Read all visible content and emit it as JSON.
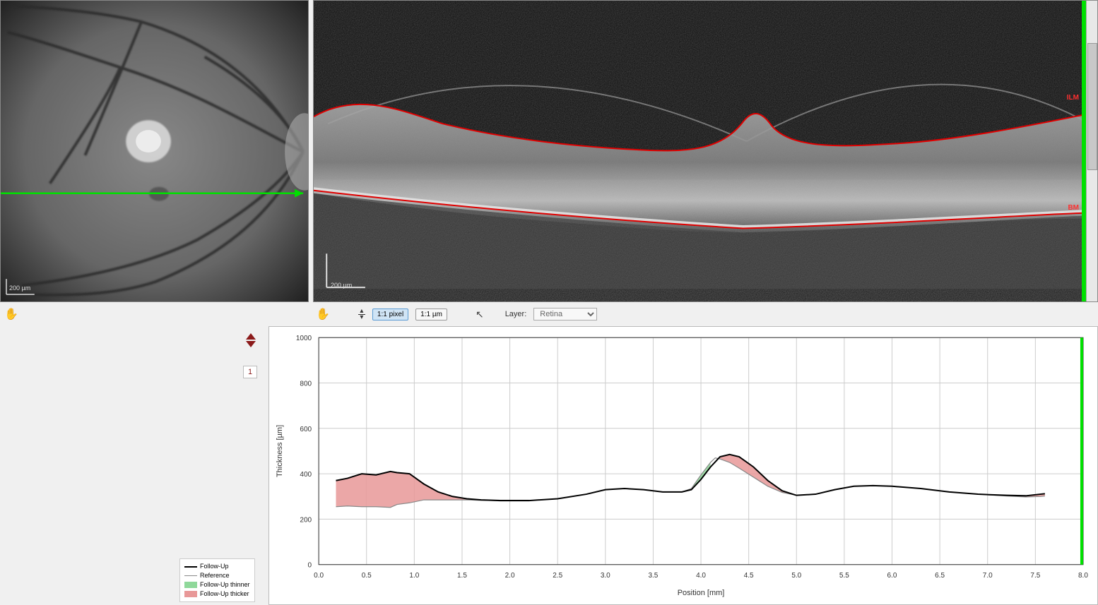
{
  "fundus": {
    "scale_label": "200 µm",
    "scan_line_y_ratio": 0.64,
    "background": "#000000",
    "scan_line_color": "#00e000"
  },
  "oct": {
    "scale_label": "200 µm",
    "ilm_label": "ILM",
    "bm_label": "BM",
    "contour_color": "#e00000",
    "label_color": "#ff2020",
    "background": "#000000",
    "green_indicator_color": "#00e000"
  },
  "toolbar": {
    "btn_pixel": "1:1 pixel",
    "btn_um": "1:1 µm",
    "layer_label": "Layer:",
    "layer_value": "Retina"
  },
  "nav": {
    "page": "1"
  },
  "legend": {
    "followup": "Follow-Up",
    "reference": "Reference",
    "thinner": "Follow-Up thinner",
    "thicker": "Follow-Up thicker"
  },
  "chart": {
    "type": "line-area-diff",
    "ylabel": "Thickness [µm]",
    "xlabel": "Position [mm]",
    "label_fontsize": 11,
    "tick_fontsize": 10,
    "xlim": [
      0.0,
      8.0
    ],
    "ylim": [
      0,
      1000
    ],
    "xtick_step": 0.5,
    "ytick_step": 200,
    "grid_color": "#cccccc",
    "background_color": "#ffffff",
    "followup_color": "#000000",
    "reference_color": "#888888",
    "thinner_fill": "#8fd89a",
    "thicker_fill": "#e89898",
    "green_marker_x": 8.0,
    "green_marker_color": "#00e000",
    "followup_points": [
      [
        0.18,
        370
      ],
      [
        0.3,
        380
      ],
      [
        0.45,
        400
      ],
      [
        0.6,
        395
      ],
      [
        0.75,
        410
      ],
      [
        0.82,
        405
      ],
      [
        0.95,
        400
      ],
      [
        1.1,
        355
      ],
      [
        1.25,
        320
      ],
      [
        1.4,
        300
      ],
      [
        1.55,
        290
      ],
      [
        1.7,
        285
      ],
      [
        1.9,
        282
      ],
      [
        2.2,
        282
      ],
      [
        2.5,
        290
      ],
      [
        2.8,
        310
      ],
      [
        3.0,
        330
      ],
      [
        3.2,
        335
      ],
      [
        3.4,
        330
      ],
      [
        3.6,
        320
      ],
      [
        3.8,
        320
      ],
      [
        3.9,
        330
      ],
      [
        4.0,
        375
      ],
      [
        4.1,
        430
      ],
      [
        4.2,
        475
      ],
      [
        4.3,
        485
      ],
      [
        4.4,
        475
      ],
      [
        4.55,
        430
      ],
      [
        4.7,
        370
      ],
      [
        4.85,
        325
      ],
      [
        5.0,
        305
      ],
      [
        5.2,
        310
      ],
      [
        5.4,
        330
      ],
      [
        5.6,
        345
      ],
      [
        5.8,
        348
      ],
      [
        6.0,
        345
      ],
      [
        6.3,
        335
      ],
      [
        6.6,
        320
      ],
      [
        6.9,
        310
      ],
      [
        7.2,
        305
      ],
      [
        7.4,
        303
      ],
      [
        7.55,
        310
      ],
      [
        7.6,
        312
      ]
    ],
    "reference_points": [
      [
        0.18,
        255
      ],
      [
        0.3,
        258
      ],
      [
        0.45,
        255
      ],
      [
        0.6,
        255
      ],
      [
        0.75,
        252
      ],
      [
        0.82,
        265
      ],
      [
        0.95,
        272
      ],
      [
        1.1,
        285
      ],
      [
        1.25,
        285
      ],
      [
        1.4,
        285
      ],
      [
        1.55,
        285
      ],
      [
        1.7,
        283
      ],
      [
        1.9,
        282
      ],
      [
        2.2,
        282
      ],
      [
        2.5,
        290
      ],
      [
        2.8,
        310
      ],
      [
        3.0,
        330
      ],
      [
        3.2,
        335
      ],
      [
        3.4,
        330
      ],
      [
        3.6,
        320
      ],
      [
        3.8,
        320
      ],
      [
        3.9,
        335
      ],
      [
        4.0,
        395
      ],
      [
        4.1,
        450
      ],
      [
        4.15,
        470
      ],
      [
        4.2,
        465
      ],
      [
        4.3,
        450
      ],
      [
        4.4,
        425
      ],
      [
        4.55,
        385
      ],
      [
        4.7,
        345
      ],
      [
        4.85,
        318
      ],
      [
        5.0,
        305
      ],
      [
        5.2,
        310
      ],
      [
        5.4,
        330
      ],
      [
        5.6,
        345
      ],
      [
        5.8,
        348
      ],
      [
        6.0,
        345
      ],
      [
        6.3,
        335
      ],
      [
        6.6,
        320
      ],
      [
        6.9,
        310
      ],
      [
        7.2,
        302
      ],
      [
        7.4,
        298
      ],
      [
        7.55,
        300
      ],
      [
        7.6,
        302
      ]
    ]
  }
}
